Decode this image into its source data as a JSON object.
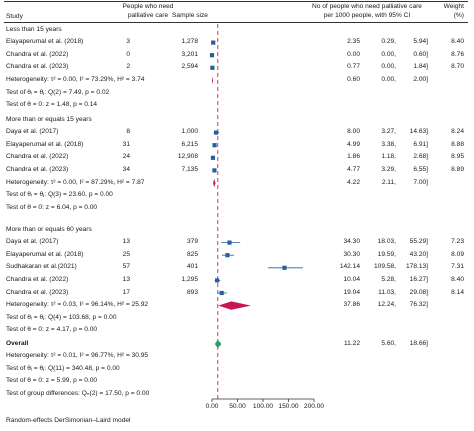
{
  "header": {
    "study": "Study",
    "palliative": [
      "People who need",
      "palliative care"
    ],
    "sample": "Sample size",
    "rate": [
      "No of people who need palliative care",
      "per 1000 people, with 95% CI"
    ],
    "weight": [
      "Weight",
      "(%)"
    ]
  },
  "footnote": "Random-effects DerSimonian–Laird model",
  "overall_note": "Test of group differences: Qₙ(2) = 17.50, p = 0.00",
  "chart_data": {
    "type": "forest",
    "xlabel": "",
    "xlim": [
      0,
      200
    ],
    "xticks": [
      "0.00",
      "50.00",
      "100.00",
      "150.00",
      "200.00"
    ],
    "xtick_values": [
      0,
      50,
      100,
      150,
      200
    ],
    "reference_line": 11.22,
    "groups": [
      {
        "name": "Less than 15 years",
        "studies": [
          {
            "label": "Elayaperumal et al. (2018)",
            "cases": "3",
            "n": "1,278",
            "est": 2.35,
            "lo": 0.29,
            "hi": 5.94,
            "est_s": "2.35",
            "lo_s": "0.29,",
            "hi_s": "5.94]",
            "weight": "8.40"
          },
          {
            "label": "Chandra et al. (2022)",
            "cases": "0",
            "n": "3,201",
            "est": 0.0,
            "lo": 0.0,
            "hi": 0.6,
            "est_s": "0.00",
            "lo_s": "0.00,",
            "hi_s": "0.60]",
            "weight": "8.76"
          },
          {
            "label": "Chandra et al. (2023)",
            "cases": "2",
            "n": "2,594",
            "est": 0.77,
            "lo": 0.0,
            "hi": 1.84,
            "est_s": "0.77",
            "lo_s": "0.00,",
            "hi_s": "1.84]",
            "weight": "8.70"
          }
        ],
        "het": "Heterogeneity: τ² = 0.00, I² = 73.29%, H² = 3.74",
        "test_q": "Test of θᵢ = θⱼ: Q(2) = 7.49, p = 0.02",
        "test_theta": "Test of θ = 0: z = 1.48, p = 0.14",
        "pooled": {
          "est": 0.6,
          "lo": 0.0,
          "hi": 2.0,
          "est_s": "0.60",
          "lo_s": "0.00,",
          "hi_s": "2.00]"
        }
      },
      {
        "name": "More than or equals 15 years",
        "studies": [
          {
            "label": "Daya et al. (2017)",
            "cases": "8",
            "n": "1,000",
            "est": 8.0,
            "lo": 3.27,
            "hi": 14.63,
            "est_s": "8.00",
            "lo_s": "3.27,",
            "hi_s": "14.63]",
            "weight": "8.24"
          },
          {
            "label": "Elayaperumal et al. (2018)",
            "cases": "31",
            "n": "6,215",
            "est": 4.99,
            "lo": 3.38,
            "hi": 6.91,
            "est_s": "4.99",
            "lo_s": "3.38,",
            "hi_s": "6.91]",
            "weight": "8.88"
          },
          {
            "label": "Chandra et al. (2022)",
            "cases": "24",
            "n": "12,908",
            "est": 1.86,
            "lo": 1.18,
            "hi": 2.68,
            "est_s": "1.86",
            "lo_s": "1.18,",
            "hi_s": "2.68]",
            "weight": "8.95"
          },
          {
            "label": "Chandra et al. (2023)",
            "cases": "34",
            "n": "7,135",
            "est": 4.77,
            "lo": 3.29,
            "hi": 6.55,
            "est_s": "4.77",
            "lo_s": "3.29,",
            "hi_s": "6.55]",
            "weight": "8.89"
          }
        ],
        "het": "Heterogeneity: τ² = 0.00, I² = 87.29%, H² = 7.87",
        "test_q": "Test of θᵢ = θⱼ: Q(3) = 23.60, p = 0.00",
        "test_theta": "Test of θ = 0: z = 6.04, p = 0.00",
        "pooled": {
          "est": 4.22,
          "lo": 2.11,
          "hi": 7.0,
          "est_s": "4.22",
          "lo_s": "2.11,",
          "hi_s": "7.00]"
        }
      },
      {
        "name": "More than or equals 60 years",
        "studies": [
          {
            "label": "Daya et al. (2017)",
            "cases": "13",
            "n": "379",
            "est": 34.3,
            "lo": 18.03,
            "hi": 55.29,
            "est_s": "34.30",
            "lo_s": "18.03,",
            "hi_s": "55.29]",
            "weight": "7.23"
          },
          {
            "label": "Elayaperumal et al. (2018)",
            "cases": "25",
            "n": "825",
            "est": 30.3,
            "lo": 19.59,
            "hi": 43.2,
            "est_s": "30.30",
            "lo_s": "19.59,",
            "hi_s": "43.20]",
            "weight": "8.09"
          },
          {
            "label": "Sudhakaran et al.(2021)",
            "cases": "57",
            "n": "401",
            "est": 142.14,
            "lo": 109.58,
            "hi": 178.13,
            "est_s": "142.14",
            "lo_s": "109.58,",
            "hi_s": "178.13]",
            "weight": "7.31"
          },
          {
            "label": "Chandra et al. (2022)",
            "cases": "13",
            "n": "1,295",
            "est": 10.04,
            "lo": 5.28,
            "hi": 16.27,
            "est_s": "10.04",
            "lo_s": "5.28,",
            "hi_s": "16.27]",
            "weight": "8.40"
          },
          {
            "label": "Chandra et al. (2023)",
            "cases": "17",
            "n": "893",
            "est": 19.04,
            "lo": 11.03,
            "hi": 29.08,
            "est_s": "19.04",
            "lo_s": "11.03,",
            "hi_s": "29.08]",
            "weight": "8.14"
          }
        ],
        "het": "Heterogeneity: τ² = 0.03, I² = 96.14%, H² = 25.92",
        "test_q": "Test of θᵢ = θⱼ: Q(4) = 103.68, p = 0.00",
        "test_theta": "Test of θ = 0: z = 4.17, p = 0.00",
        "pooled": {
          "est": 37.86,
          "lo": 12.24,
          "hi": 76.32,
          "est_s": "37.86",
          "lo_s": "12.24,",
          "hi_s": "76.32]"
        }
      }
    ],
    "overall": {
      "label": "Overall",
      "est": 11.22,
      "lo": 5.6,
      "hi": 18.66,
      "est_s": "11.22",
      "lo_s": "5.60,",
      "hi_s": "18.66]",
      "het": "Heterogeneity: τ² = 0.01, I² = 96.77%, H² = 30.95",
      "test_q": "Test of θᵢ = θⱼ: Q(11) = 340.48, p = 0.00",
      "test_theta": "Test of θ = 0: z = 5.99, p = 0.00"
    },
    "colors": {
      "study_marker": "#2a5f9e",
      "group_diamond": "#c8174f",
      "overall_diamond": "#2aa068",
      "reference_line": "#e8456a",
      "text": "#1a1a1a"
    }
  }
}
